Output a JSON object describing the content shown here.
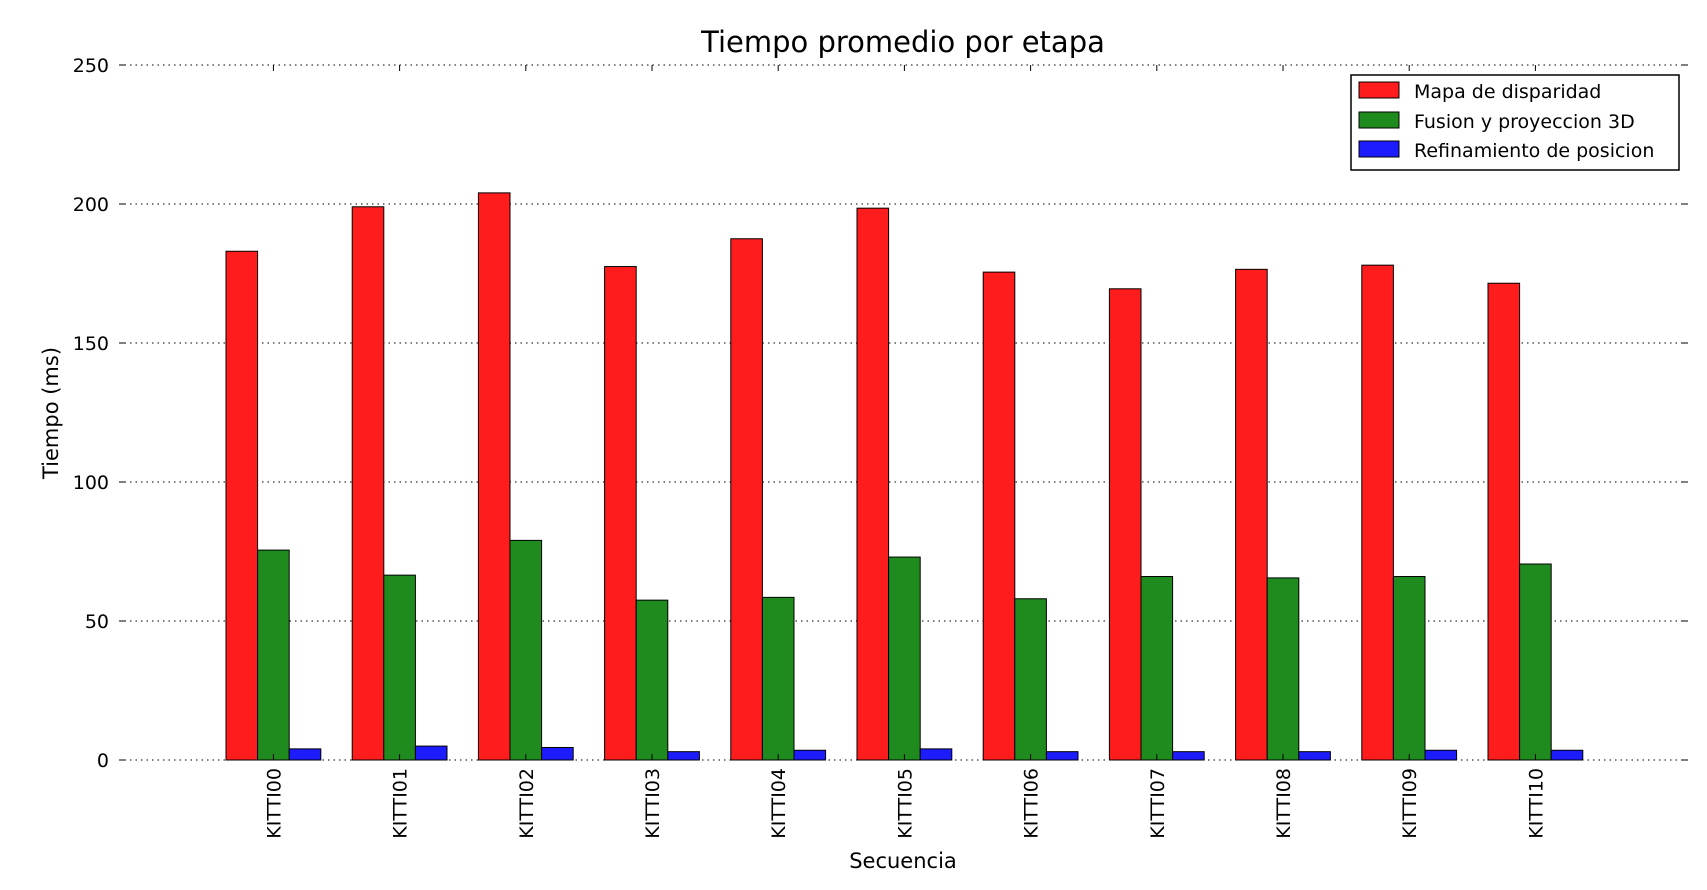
{
  "chart_data": {
    "type": "bar",
    "title": "Tiempo promedio por etapa",
    "xlabel": "Secuencia",
    "ylabel": "Tiempo (ms)",
    "categories": [
      "KITTI00",
      "KITTI01",
      "KITTI02",
      "KITTI03",
      "KITTI04",
      "KITTI05",
      "KITTI06",
      "KITTI07",
      "KITTI08",
      "KITTI09",
      "KITTI10"
    ],
    "ylim": [
      0,
      250
    ],
    "yticks": [
      "0",
      "50",
      "100",
      "150",
      "200",
      "250"
    ],
    "grid": true,
    "legend_position": "top-right",
    "series": [
      {
        "name": "Mapa de disparidad",
        "color": "#ff1c1c",
        "values": [
          183,
          199,
          204,
          177.5,
          187.5,
          198.5,
          175.5,
          169.5,
          176.5,
          178,
          171.5
        ]
      },
      {
        "name": "Fusion y proyeccion 3D",
        "color": "#1f8b1f",
        "values": [
          75.5,
          66.5,
          79,
          57.5,
          58.5,
          73,
          58,
          66,
          65.5,
          66,
          70.5
        ]
      },
      {
        "name": "Refinamiento de posicion",
        "color": "#1c1cff",
        "values": [
          4,
          5,
          4.5,
          3,
          3.5,
          4,
          3,
          3,
          3,
          3.5,
          3.5
        ]
      }
    ]
  }
}
